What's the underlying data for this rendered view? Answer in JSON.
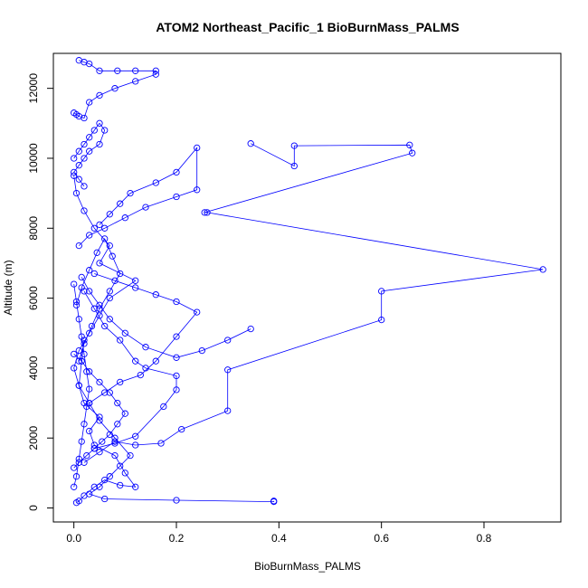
{
  "chart_data": {
    "type": "line",
    "title": "ATOM2 Northeast_Pacific_1 BioBurnMass_PALMS",
    "xlabel": "BioBurnMass_PALMS",
    "ylabel": "Altitude (m)",
    "xlim": [
      -0.04,
      0.95
    ],
    "ylim": [
      -400,
      13000
    ],
    "xticks": [
      0.0,
      0.2,
      0.4,
      0.6,
      0.8
    ],
    "xtick_labels": [
      "0.0",
      "0.2",
      "0.4",
      "0.6",
      "0.8"
    ],
    "yticks": [
      0,
      2000,
      4000,
      6000,
      8000,
      10000,
      12000
    ],
    "ytick_labels": [
      "0",
      "2000",
      "4000",
      "6000",
      "8000",
      "10000",
      "12000"
    ],
    "series_color": "#0000ff",
    "marker": "open-circle",
    "grid": false,
    "legend": "none",
    "series": [
      {
        "x": [
          0.005,
          0.01,
          0.02,
          0.04,
          0.06,
          0.09,
          0.12,
          0.1,
          0.08,
          0.04,
          0.03,
          0.05,
          0.02,
          0.01,
          0.0,
          0.01,
          0.03,
          0.05,
          0.07,
          0.12,
          0.05,
          0.07,
          0.04,
          0.02,
          0.005,
          0.0
        ],
        "y": [
          150,
          200,
          350,
          600,
          800,
          650,
          600,
          1000,
          1500,
          1800,
          2200,
          2600,
          3000,
          3500,
          4000,
          4500,
          5000,
          5500,
          6000,
          6500,
          7000,
          7500,
          8000,
          8500,
          9000,
          9500
        ]
      },
      {
        "x": [
          0.39,
          0.39,
          0.2,
          0.06,
          0.03,
          0.05,
          0.07,
          0.09,
          0.11,
          0.08,
          0.05,
          0.03,
          0.01,
          0.015,
          0.02
        ],
        "y": [
          200,
          180,
          220,
          260,
          400,
          600,
          900,
          1200,
          1500,
          2000,
          2500,
          3000,
          3500,
          4200,
          4800
        ]
      },
      {
        "x": [
          0.02,
          0.05,
          0.08,
          0.12,
          0.17,
          0.21,
          0.3,
          0.3,
          0.6,
          0.6,
          0.915,
          0.26,
          0.255,
          0.66,
          0.655,
          0.43,
          0.43,
          0.345
        ],
        "y": [
          1300,
          1600,
          1900,
          1800,
          1850,
          2250,
          2780,
          3950,
          5380,
          6200,
          6820,
          8450,
          8450,
          10150,
          10380,
          10360,
          9780,
          10420
        ]
      },
      {
        "x": [
          0.04,
          0.08,
          0.12,
          0.175,
          0.2,
          0.2,
          0.14,
          0.12,
          0.09,
          0.06,
          0.04,
          0.02
        ],
        "y": [
          1700,
          1850,
          2050,
          2900,
          3380,
          3780,
          4000,
          4200,
          4800,
          5200,
          5700,
          6200
        ]
      },
      {
        "x": [
          0.01,
          0.03,
          0.06,
          0.1,
          0.14,
          0.2,
          0.24,
          0.24,
          0.2,
          0.16,
          0.11,
          0.09,
          0.07,
          0.05
        ],
        "y": [
          7500,
          7800,
          8000,
          8300,
          8600,
          8900,
          9100,
          10300,
          9600,
          9300,
          9000,
          8700,
          8400,
          8100
        ]
      },
      {
        "x": [
          0.03,
          0.06,
          0.09,
          0.13,
          0.16,
          0.2,
          0.24,
          0.2,
          0.16,
          0.12,
          0.08,
          0.04
        ],
        "y": [
          3000,
          3300,
          3600,
          3800,
          4200,
          4900,
          5600,
          5900,
          6100,
          6300,
          6500,
          6700
        ]
      },
      {
        "x": [
          0.345,
          0.3,
          0.25,
          0.2,
          0.14,
          0.1,
          0.07,
          0.05,
          0.03,
          0.015
        ],
        "y": [
          5120,
          4800,
          4500,
          4300,
          4600,
          5000,
          5400,
          5800,
          6200,
          6600
        ]
      },
      {
        "x": [
          0.0,
          0.01,
          0.02,
          0.03,
          0.04,
          0.05,
          0.06,
          0.05,
          0.03,
          0.02,
          0.01,
          0.0,
          0.01,
          0.02
        ],
        "y": [
          10000,
          10200,
          10400,
          10600,
          10800,
          11000,
          10800,
          10400,
          10200,
          10000,
          9800,
          9600,
          9400,
          9200
        ]
      },
      {
        "x": [
          0.0,
          0.005,
          0.01,
          0.02,
          0.03,
          0.05,
          0.08,
          0.12,
          0.16,
          0.16,
          0.12,
          0.085,
          0.05,
          0.03,
          0.02,
          0.01
        ],
        "y": [
          11300,
          11250,
          11200,
          11150,
          11600,
          11800,
          12000,
          12200,
          12400,
          12500,
          12500,
          12500,
          12500,
          12700,
          12750,
          12800
        ]
      },
      {
        "x": [
          0.005,
          0.015,
          0.03,
          0.045,
          0.06,
          0.075,
          0.09,
          0.07,
          0.05,
          0.035,
          0.02,
          0.01
        ],
        "y": [
          5800,
          6300,
          6800,
          7300,
          7700,
          7200,
          6700,
          6200,
          5700,
          5200,
          4700,
          4200
        ]
      },
      {
        "x": [
          0.0,
          0.01,
          0.025,
          0.04,
          0.055,
          0.07,
          0.085,
          0.1,
          0.085,
          0.07,
          0.05,
          0.03,
          0.015,
          0.0
        ],
        "y": [
          1150,
          1300,
          1500,
          1700,
          1900,
          2100,
          2400,
          2700,
          3000,
          3300,
          3600,
          3900,
          4200,
          4400
        ]
      },
      {
        "x": [
          0.0,
          0.005,
          0.01,
          0.015,
          0.02,
          0.025,
          0.03,
          0.025,
          0.02,
          0.015,
          0.01,
          0.005,
          0.0
        ],
        "y": [
          600,
          900,
          1400,
          1900,
          2400,
          2900,
          3400,
          3900,
          4400,
          4900,
          5400,
          5900,
          6400
        ]
      }
    ]
  }
}
